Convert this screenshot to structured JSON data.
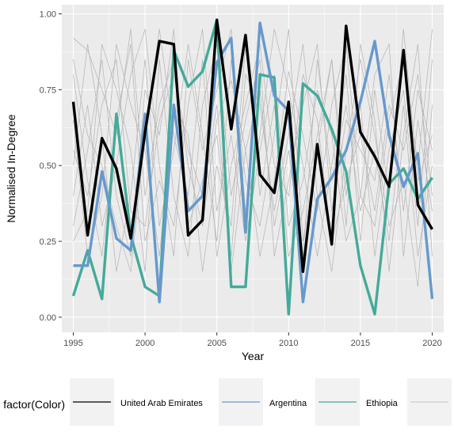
{
  "chart_data": {
    "type": "line",
    "xlabel": "Year",
    "ylabel": "Normalised In-Degree",
    "xlim": [
      1994.2,
      2020.8
    ],
    "ylim": [
      -0.05,
      1.03
    ],
    "x_ticks": [
      1995,
      2000,
      2005,
      2010,
      2015,
      2020
    ],
    "x_tick_labels": [
      "1995",
      "2000",
      "2005",
      "2010",
      "2015",
      "2020"
    ],
    "y_ticks": [
      0,
      0.25,
      0.5,
      0.75,
      1.0
    ],
    "y_tick_labels": [
      "0.00",
      "0.25",
      "0.50",
      "0.75",
      "1.00"
    ],
    "grid": true,
    "background": "#ebebeb",
    "x": [
      1995,
      1996,
      1997,
      1998,
      1999,
      2000,
      2001,
      2002,
      2003,
      2004,
      2005,
      2006,
      2007,
      2008,
      2009,
      2010,
      2011,
      2012,
      2013,
      2014,
      2015,
      2016,
      2017,
      2018,
      2019,
      2020
    ],
    "series": [
      {
        "name": "United Arab Emirates",
        "color": "#000000",
        "values": [
          0.71,
          0.27,
          0.59,
          0.49,
          0.26,
          0.61,
          0.91,
          0.9,
          0.27,
          0.32,
          0.98,
          0.62,
          0.93,
          0.47,
          0.41,
          0.71,
          0.15,
          0.57,
          0.24,
          0.96,
          0.61,
          0.53,
          0.43,
          0.88,
          0.37,
          0.29
        ]
      },
      {
        "name": "Argentina",
        "color": "#6699cc",
        "values": [
          0.17,
          0.17,
          0.48,
          0.26,
          0.22,
          0.67,
          0.05,
          0.7,
          0.35,
          0.4,
          0.84,
          0.92,
          0.28,
          0.97,
          0.73,
          0.68,
          0.05,
          0.39,
          0.46,
          0.55,
          0.71,
          0.91,
          0.6,
          0.43,
          0.54,
          0.06
        ]
      },
      {
        "name": "Ethiopia",
        "color": "#44aa99",
        "values": [
          0.07,
          0.22,
          0.06,
          0.67,
          0.27,
          0.1,
          0.07,
          0.88,
          0.76,
          0.81,
          0.98,
          0.1,
          0.1,
          0.8,
          0.79,
          0.01,
          0.77,
          0.73,
          0.62,
          0.48,
          0.17,
          0.01,
          0.44,
          0.49,
          0.39,
          0.46
        ]
      }
    ],
    "background_series": [
      [
        0.92,
        0.88,
        0.75,
        0.6,
        0.95,
        0.4,
        0.7,
        0.85,
        0.5,
        0.3,
        0.65,
        0.78,
        0.55,
        0.2,
        0.45,
        0.81,
        0.6,
        0.35,
        0.7,
        0.9,
        0.4,
        0.3,
        0.65,
        0.85,
        0.5,
        0.95
      ],
      [
        0.3,
        0.55,
        0.85,
        0.4,
        0.2,
        0.75,
        0.6,
        0.95,
        0.3,
        0.45,
        0.6,
        0.2,
        0.8,
        0.7,
        0.35,
        0.6,
        0.9,
        0.4,
        0.15,
        0.55,
        0.85,
        0.6,
        0.3,
        0.45,
        0.1,
        0.7
      ],
      [
        0.8,
        0.45,
        0.2,
        0.65,
        0.9,
        0.25,
        0.45,
        0.3,
        0.7,
        0.95,
        0.35,
        0.6,
        0.25,
        0.55,
        0.8,
        0.3,
        0.45,
        0.75,
        0.6,
        0.25,
        0.4,
        0.8,
        0.9,
        0.2,
        0.65,
        0.35
      ],
      [
        0.5,
        0.9,
        0.6,
        0.15,
        0.4,
        0.85,
        0.3,
        0.55,
        0.9,
        0.6,
        0.25,
        0.85,
        0.45,
        0.3,
        0.6,
        0.95,
        0.25,
        0.55,
        0.85,
        0.4,
        0.7,
        0.2,
        0.55,
        0.75,
        0.3,
        0.85
      ],
      [
        0.25,
        0.35,
        0.9,
        0.75,
        0.55,
        0.15,
        0.85,
        0.4,
        0.2,
        0.7,
        0.9,
        0.4,
        0.65,
        0.85,
        0.2,
        0.45,
        0.7,
        0.9,
        0.35,
        0.65,
        0.55,
        0.45,
        0.8,
        0.35,
        0.75,
        0.55
      ],
      [
        0.65,
        0.2,
        0.4,
        0.9,
        0.7,
        0.55,
        0.2,
        0.7,
        0.6,
        0.15,
        0.5,
        0.3,
        0.9,
        0.4,
        0.7,
        0.2,
        0.35,
        0.6,
        0.85,
        0.3,
        0.9,
        0.65,
        0.15,
        0.6,
        0.9,
        0.2
      ],
      [
        0.4,
        0.7,
        0.3,
        0.5,
        0.8,
        0.95,
        0.5,
        0.2,
        0.85,
        0.55,
        0.75,
        0.95,
        0.35,
        0.6,
        0.95,
        0.75,
        0.5,
        0.2,
        0.5,
        0.8,
        0.25,
        0.75,
        0.4,
        0.95,
        0.45,
        0.6
      ],
      [
        0.85,
        0.6,
        0.5,
        0.3,
        0.15,
        0.6,
        0.95,
        0.6,
        0.4,
        0.85,
        0.2,
        0.5,
        0.7,
        0.9,
        0.5,
        0.4,
        0.8,
        0.65,
        0.25,
        0.45,
        0.6,
        0.35,
        0.7,
        0.55,
        0.8,
        0.4
      ],
      [
        0.55,
        0.4,
        0.7,
        0.85,
        0.35,
        0.3,
        0.65,
        0.8,
        0.55,
        0.4,
        0.7,
        0.15,
        0.55,
        0.75,
        0.3,
        0.55,
        0.2,
        0.85,
        0.45,
        0.7,
        0.35,
        0.55,
        0.25,
        0.7,
        0.2,
        0.5
      ]
    ],
    "background_color": "#b3b3b3",
    "legend": {
      "position": "bottom",
      "title": "factor(Color)",
      "entries": [
        "United Arab Emirates",
        "Argentina",
        "Ethiopia",
        ""
      ]
    }
  }
}
